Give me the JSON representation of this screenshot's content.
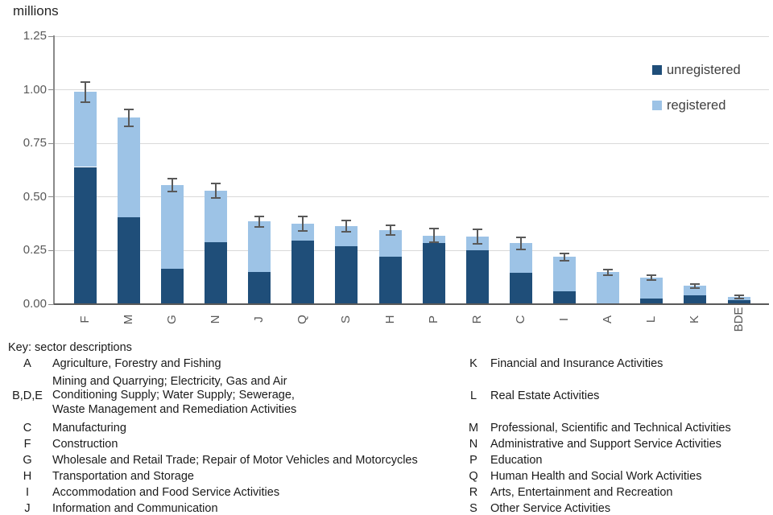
{
  "chart_data": {
    "type": "bar",
    "stacked": true,
    "title": "millions",
    "categories": [
      "F",
      "M",
      "G",
      "N",
      "J",
      "Q",
      "S",
      "H",
      "P",
      "R",
      "C",
      "I",
      "A",
      "L",
      "K",
      "BDE"
    ],
    "series": [
      {
        "name": "unregistered",
        "color": "#1F4E79",
        "values": [
          0.64,
          0.405,
          0.165,
          0.29,
          0.15,
          0.295,
          0.27,
          0.22,
          0.285,
          0.25,
          0.145,
          0.06,
          0.005,
          0.025,
          0.04,
          0.02
        ]
      },
      {
        "name": "registered",
        "color": "#9DC3E6",
        "values": [
          0.35,
          0.465,
          0.39,
          0.24,
          0.235,
          0.08,
          0.095,
          0.125,
          0.035,
          0.065,
          0.14,
          0.16,
          0.145,
          0.1,
          0.045,
          0.015
        ]
      }
    ],
    "totals": [
      0.99,
      0.87,
      0.555,
      0.53,
      0.385,
      0.375,
      0.365,
      0.345,
      0.32,
      0.315,
      0.285,
      0.22,
      0.15,
      0.125,
      0.085,
      0.035
    ],
    "error_bars": [
      0.047,
      0.04,
      0.03,
      0.033,
      0.025,
      0.035,
      0.027,
      0.024,
      0.032,
      0.035,
      0.028,
      0.018,
      0.013,
      0.012,
      0.01,
      0.007
    ],
    "legend": [
      "unregistered",
      "registered"
    ],
    "legend_position": "top-right",
    "ylabel": "millions",
    "ylim": [
      0,
      1.25
    ],
    "yticks": [
      0,
      0.25,
      0.5,
      0.75,
      1.0,
      1.25
    ],
    "grid": true,
    "colors": {
      "error_bar": "#595959",
      "gridline": "#d9d9d9",
      "axis": "#898989",
      "tick_text": "#595959"
    }
  },
  "key": {
    "title": "Key: sector descriptions",
    "left": [
      {
        "code": "A",
        "desc": "Agriculture, Forestry and Fishing"
      },
      {
        "code": "B,D,E",
        "desc": "Mining and Quarrying; Electricity, Gas and Air Conditioning Supply; Water Supply; Sewerage, Waste Management and Remediation Activities",
        "desc_lines": [
          "Mining and Quarrying; Electricity, Gas and Air",
          "Conditioning Supply; Water Supply; Sewerage,",
          "Waste Management and Remediation Activities"
        ]
      },
      {
        "code": "C",
        "desc": "Manufacturing"
      },
      {
        "code": "F",
        "desc": "Construction"
      },
      {
        "code": "G",
        "desc": "Wholesale and Retail Trade; Repair of Motor Vehicles and Motorcycles"
      },
      {
        "code": "H",
        "desc": "Transportation and Storage"
      },
      {
        "code": "I",
        "desc": "Accommodation and Food Service Activities"
      },
      {
        "code": "J",
        "desc": "Information and Communication"
      }
    ],
    "right": [
      {
        "code": "K",
        "desc": "Financial and Insurance Activities"
      },
      {
        "code": "L",
        "desc": "Real Estate Activities"
      },
      {
        "code": "M",
        "desc": "Professional, Scientific and Technical Activities"
      },
      {
        "code": "N",
        "desc": "Administrative and Support Service Activities"
      },
      {
        "code": "P",
        "desc": "Education"
      },
      {
        "code": "Q",
        "desc": "Human Health and Social Work Activities"
      },
      {
        "code": "R",
        "desc": "Arts, Entertainment and Recreation"
      },
      {
        "code": "S",
        "desc": "Other Service Activities"
      }
    ]
  }
}
